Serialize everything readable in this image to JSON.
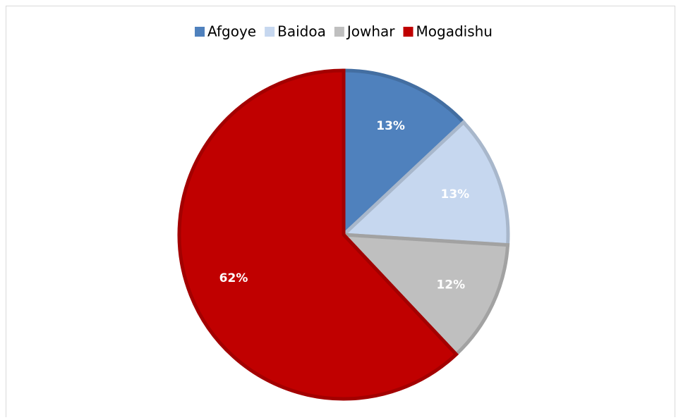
{
  "chart_data": {
    "type": "pie",
    "categories": [
      "Afgoye",
      "Baidoa",
      "Jowhar",
      "Mogadishu"
    ],
    "values": [
      13,
      13,
      12,
      62
    ],
    "value_labels": [
      "13%",
      "13%",
      "12%",
      "62%"
    ],
    "colors": [
      "#4f81bd",
      "#c6d7ef",
      "#bfbfbf",
      "#c00000"
    ],
    "legend": "top"
  }
}
